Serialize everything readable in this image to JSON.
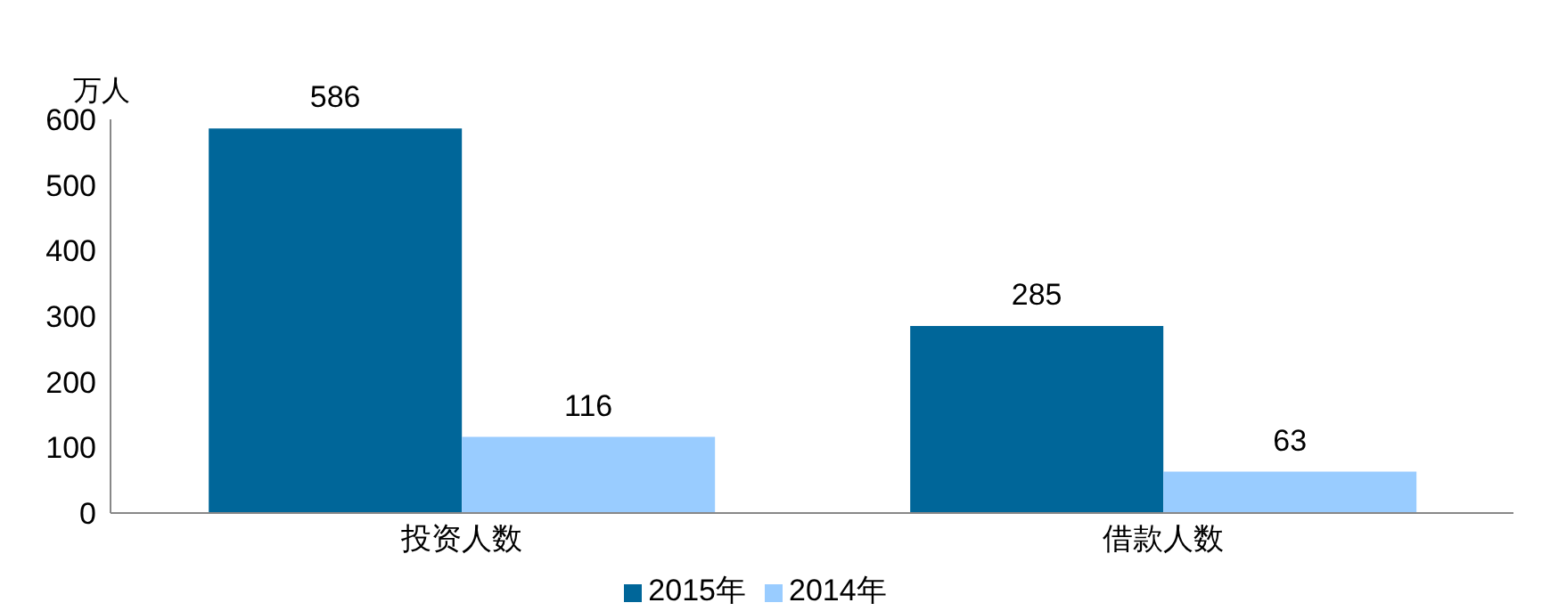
{
  "chart_data": {
    "type": "bar",
    "ylabel": "万人",
    "categories": [
      "投资人数",
      "借款人数"
    ],
    "series": [
      {
        "name": "2015年",
        "color": "#006699",
        "values": [
          586,
          285
        ]
      },
      {
        "name": "2014年",
        "color": "#99ccff",
        "values": [
          116,
          63
        ]
      }
    ],
    "ylim": [
      0,
      600
    ],
    "yticks": [
      0,
      100,
      200,
      300,
      400,
      500,
      600
    ],
    "grid": false,
    "legend": "bottom",
    "data_labels": true
  }
}
